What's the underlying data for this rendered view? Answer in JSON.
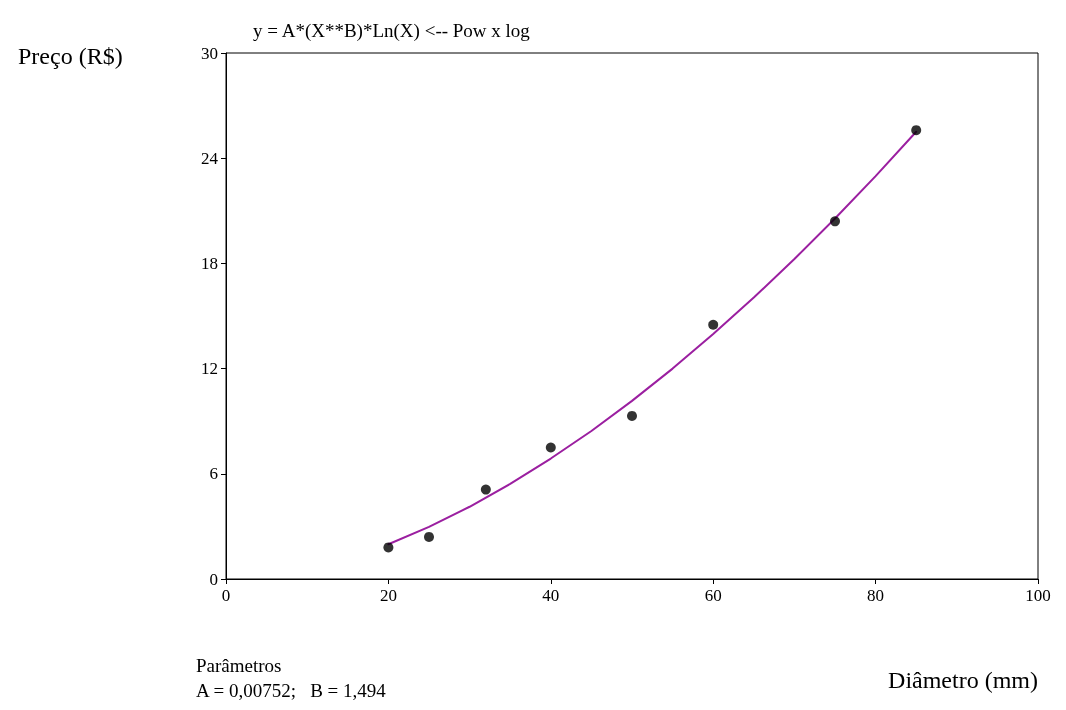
{
  "chart_data": {
    "type": "scatter",
    "title": "y = A*(X**B)*Ln(X) <-- Pow x log",
    "xlabel": "Diâmetro (mm)",
    "ylabel": "Preço (R$)",
    "annotations": [
      "Parâmetros",
      "A = 0,00752;   B = 1,494"
    ],
    "xlim": [
      0,
      100
    ],
    "xticks": [
      0,
      20,
      40,
      60,
      80,
      100
    ],
    "ylim": [
      0,
      30
    ],
    "yticks": [
      0,
      6,
      12,
      18,
      24,
      30
    ],
    "grid": false,
    "series": [
      {
        "color": "#000000",
        "marker": "circle",
        "x": [
          20,
          25,
          32,
          40,
          50,
          60,
          75,
          85
        ],
        "values": [
          1.8,
          2.4,
          5.1,
          7.5,
          9.3,
          14.5,
          20.4,
          25.6
        ]
      },
      {
        "type": "line",
        "color": "#9b1fa0",
        "marker": "none",
        "line_style": "solid",
        "x": [
          20,
          25,
          30,
          35,
          40,
          45,
          50,
          55,
          60,
          65,
          70,
          75,
          80,
          85
        ],
        "values": [
          1.98,
          2.97,
          4.12,
          5.42,
          6.87,
          8.44,
          10.16,
          12.0,
          13.97,
          16.05,
          18.25,
          20.56,
          22.98,
          25.51
        ]
      }
    ]
  }
}
